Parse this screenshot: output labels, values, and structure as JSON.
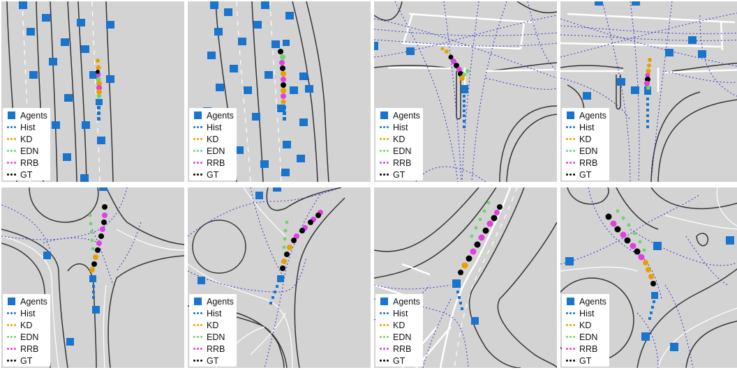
{
  "colors": {
    "background": "#d3d3d3",
    "road_edge": "#333333",
    "lane_marking": "#ffffff",
    "crosswalk_path": "#3333cc",
    "agents": "#1874cd",
    "hist": "#1874cd",
    "kd": "#e8a000",
    "edn": "#6fd36f",
    "rrb": "#e040e0",
    "gt": "#000000"
  },
  "legend": {
    "items": [
      {
        "key": "agents",
        "label": "Agents",
        "marker": "square",
        "color": "#1874cd"
      },
      {
        "key": "hist",
        "label": "Hist",
        "marker": "dots",
        "color": "#1874cd"
      },
      {
        "key": "kd",
        "label": "KD",
        "marker": "dots",
        "color": "#e8a000"
      },
      {
        "key": "edn",
        "label": "EDN",
        "marker": "dots",
        "color": "#6fd36f"
      },
      {
        "key": "rrb",
        "label": "RRB",
        "marker": "dots",
        "color": "#e040e0"
      },
      {
        "key": "gt",
        "label": "GT",
        "marker": "dots",
        "color": "#000000"
      }
    ]
  },
  "panels": [
    {
      "id": "straight-road-sparse",
      "scene": "straight road"
    },
    {
      "id": "straight-road-dense",
      "scene": "straight road"
    },
    {
      "id": "intersection-a",
      "scene": "intersection"
    },
    {
      "id": "intersection-b",
      "scene": "intersection"
    },
    {
      "id": "roundabout-exit",
      "scene": "roundabout"
    },
    {
      "id": "roundabout-entry",
      "scene": "roundabout"
    },
    {
      "id": "curved-road",
      "scene": "curve"
    },
    {
      "id": "roundabout-turn",
      "scene": "roundabout"
    }
  ]
}
